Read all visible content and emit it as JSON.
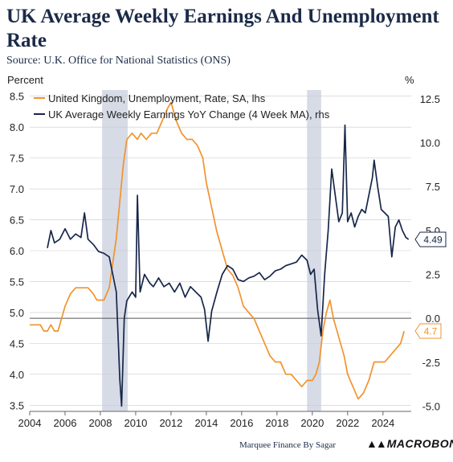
{
  "title": "UK Average Weekly Earnings And Unemployment Rate",
  "source": "Source: U.K. Office for National Statistics (ONS)",
  "credit": "Marquee Finance By Sagar",
  "logo": "MACROBOND",
  "colors": {
    "unemployment": "#f2932b",
    "earnings": "#17264a",
    "recession_band": "#d6dbe6",
    "grid": "#c9c9c9",
    "zero_line": "#555555"
  },
  "chart_data": {
    "type": "line",
    "left_axis": {
      "label": "Percent",
      "ylim": [
        3.4,
        8.6
      ],
      "ticks": [
        "3.5",
        "4.0",
        "4.5",
        "5.0",
        "5.5",
        "6.0",
        "6.5",
        "7.0",
        "7.5",
        "8.0",
        "8.5"
      ]
    },
    "right_axis": {
      "label": "%",
      "ylim": [
        -5.3,
        13.0
      ],
      "ticks": [
        "-5.0",
        "-2.5",
        "0.0",
        "2.5",
        "5.0",
        "7.5",
        "10.0",
        "12.5"
      ]
    },
    "x_axis": {
      "range": [
        2004,
        2025.6
      ],
      "ticks": [
        "2004",
        "2006",
        "2008",
        "2010",
        "2012",
        "2014",
        "2016",
        "2018",
        "2020",
        "2022",
        "2024"
      ]
    },
    "shaded_periods": [
      [
        2008.1,
        2009.55
      ],
      [
        2019.7,
        2020.5
      ]
    ],
    "legend": {
      "position": "top-left"
    },
    "series": [
      {
        "name": "United Kingdom, Unemployment, Rate, SA, lhs",
        "axis": "left",
        "latest_label": "4.7",
        "points": [
          [
            2004.0,
            4.8
          ],
          [
            2004.6,
            4.8
          ],
          [
            2004.8,
            4.7
          ],
          [
            2005.0,
            4.7
          ],
          [
            2005.2,
            4.8
          ],
          [
            2005.4,
            4.7
          ],
          [
            2005.6,
            4.7
          ],
          [
            2005.8,
            4.9
          ],
          [
            2006.0,
            5.1
          ],
          [
            2006.3,
            5.3
          ],
          [
            2006.6,
            5.4
          ],
          [
            2007.0,
            5.4
          ],
          [
            2007.3,
            5.4
          ],
          [
            2007.6,
            5.3
          ],
          [
            2007.8,
            5.2
          ],
          [
            2008.2,
            5.2
          ],
          [
            2008.5,
            5.4
          ],
          [
            2008.7,
            5.8
          ],
          [
            2008.9,
            6.2
          ],
          [
            2009.1,
            6.8
          ],
          [
            2009.3,
            7.4
          ],
          [
            2009.5,
            7.8
          ],
          [
            2009.8,
            7.9
          ],
          [
            2010.1,
            7.8
          ],
          [
            2010.3,
            7.9
          ],
          [
            2010.6,
            7.8
          ],
          [
            2010.9,
            7.9
          ],
          [
            2011.2,
            7.9
          ],
          [
            2011.5,
            8.1
          ],
          [
            2011.8,
            8.3
          ],
          [
            2012.0,
            8.4
          ],
          [
            2012.3,
            8.1
          ],
          [
            2012.6,
            7.9
          ],
          [
            2012.9,
            7.8
          ],
          [
            2013.2,
            7.8
          ],
          [
            2013.5,
            7.7
          ],
          [
            2013.8,
            7.5
          ],
          [
            2014.0,
            7.1
          ],
          [
            2014.3,
            6.7
          ],
          [
            2014.6,
            6.3
          ],
          [
            2014.9,
            6.0
          ],
          [
            2015.2,
            5.7
          ],
          [
            2015.5,
            5.6
          ],
          [
            2015.8,
            5.4
          ],
          [
            2016.1,
            5.1
          ],
          [
            2016.4,
            5.0
          ],
          [
            2016.7,
            4.9
          ],
          [
            2017.0,
            4.7
          ],
          [
            2017.3,
            4.5
          ],
          [
            2017.6,
            4.3
          ],
          [
            2017.9,
            4.2
          ],
          [
            2018.2,
            4.2
          ],
          [
            2018.5,
            4.0
          ],
          [
            2018.8,
            4.0
          ],
          [
            2019.1,
            3.9
          ],
          [
            2019.4,
            3.8
          ],
          [
            2019.7,
            3.9
          ],
          [
            2020.0,
            3.9
          ],
          [
            2020.2,
            4.0
          ],
          [
            2020.4,
            4.2
          ],
          [
            2020.6,
            4.7
          ],
          [
            2020.8,
            5.0
          ],
          [
            2021.0,
            5.2
          ],
          [
            2021.2,
            4.9
          ],
          [
            2021.5,
            4.6
          ],
          [
            2021.8,
            4.3
          ],
          [
            2022.0,
            4.0
          ],
          [
            2022.3,
            3.8
          ],
          [
            2022.6,
            3.6
          ],
          [
            2022.9,
            3.7
          ],
          [
            2023.2,
            3.9
          ],
          [
            2023.5,
            4.2
          ],
          [
            2023.8,
            4.2
          ],
          [
            2024.1,
            4.2
          ],
          [
            2024.4,
            4.3
          ],
          [
            2024.7,
            4.4
          ],
          [
            2025.0,
            4.5
          ],
          [
            2025.2,
            4.7
          ]
        ]
      },
      {
        "name": "UK Average Weekly Earnings YoY Change (4 Week MA), rhs",
        "axis": "right",
        "latest_label": "4.49",
        "points": [
          [
            2005.0,
            4.0
          ],
          [
            2005.2,
            5.0
          ],
          [
            2005.4,
            4.3
          ],
          [
            2005.7,
            4.5
          ],
          [
            2006.0,
            5.1
          ],
          [
            2006.3,
            4.5
          ],
          [
            2006.6,
            4.8
          ],
          [
            2006.9,
            4.6
          ],
          [
            2007.1,
            6.0
          ],
          [
            2007.3,
            4.5
          ],
          [
            2007.6,
            4.2
          ],
          [
            2007.9,
            3.8
          ],
          [
            2008.2,
            3.7
          ],
          [
            2008.5,
            3.5
          ],
          [
            2008.7,
            2.5
          ],
          [
            2008.9,
            1.5
          ],
          [
            2009.1,
            -3.5
          ],
          [
            2009.2,
            -5.0
          ],
          [
            2009.35,
            0.0
          ],
          [
            2009.5,
            1.0
          ],
          [
            2009.8,
            1.5
          ],
          [
            2010.0,
            1.2
          ],
          [
            2010.1,
            7.0
          ],
          [
            2010.25,
            1.5
          ],
          [
            2010.5,
            2.5
          ],
          [
            2010.8,
            2.0
          ],
          [
            2011.0,
            1.8
          ],
          [
            2011.3,
            2.3
          ],
          [
            2011.6,
            1.8
          ],
          [
            2011.9,
            2.0
          ],
          [
            2012.2,
            1.5
          ],
          [
            2012.5,
            2.0
          ],
          [
            2012.8,
            1.2
          ],
          [
            2013.1,
            1.8
          ],
          [
            2013.4,
            1.5
          ],
          [
            2013.7,
            1.2
          ],
          [
            2013.9,
            0.5
          ],
          [
            2014.1,
            -1.3
          ],
          [
            2014.3,
            0.4
          ],
          [
            2014.6,
            1.5
          ],
          [
            2014.9,
            2.5
          ],
          [
            2015.2,
            3.0
          ],
          [
            2015.5,
            2.8
          ],
          [
            2015.8,
            2.2
          ],
          [
            2016.1,
            2.1
          ],
          [
            2016.4,
            2.3
          ],
          [
            2016.7,
            2.4
          ],
          [
            2017.0,
            2.6
          ],
          [
            2017.3,
            2.2
          ],
          [
            2017.6,
            2.4
          ],
          [
            2017.9,
            2.7
          ],
          [
            2018.2,
            2.8
          ],
          [
            2018.5,
            3.0
          ],
          [
            2018.8,
            3.1
          ],
          [
            2019.1,
            3.2
          ],
          [
            2019.4,
            3.6
          ],
          [
            2019.7,
            3.3
          ],
          [
            2019.9,
            2.5
          ],
          [
            2020.1,
            2.8
          ],
          [
            2020.3,
            0.5
          ],
          [
            2020.5,
            -1.0
          ],
          [
            2020.7,
            2.5
          ],
          [
            2020.9,
            5.0
          ],
          [
            2021.1,
            8.5
          ],
          [
            2021.3,
            7.0
          ],
          [
            2021.5,
            5.5
          ],
          [
            2021.7,
            6.0
          ],
          [
            2021.85,
            11.0
          ],
          [
            2022.0,
            5.5
          ],
          [
            2022.2,
            6.0
          ],
          [
            2022.4,
            5.2
          ],
          [
            2022.6,
            5.8
          ],
          [
            2022.8,
            6.2
          ],
          [
            2023.0,
            6.0
          ],
          [
            2023.2,
            7.0
          ],
          [
            2023.4,
            8.0
          ],
          [
            2023.5,
            9.0
          ],
          [
            2023.7,
            7.5
          ],
          [
            2023.9,
            6.2
          ],
          [
            2024.1,
            6.0
          ],
          [
            2024.3,
            5.8
          ],
          [
            2024.5,
            3.5
          ],
          [
            2024.7,
            5.2
          ],
          [
            2024.9,
            5.6
          ],
          [
            2025.1,
            5.0
          ],
          [
            2025.3,
            4.6
          ],
          [
            2025.45,
            4.49
          ]
        ]
      }
    ]
  }
}
